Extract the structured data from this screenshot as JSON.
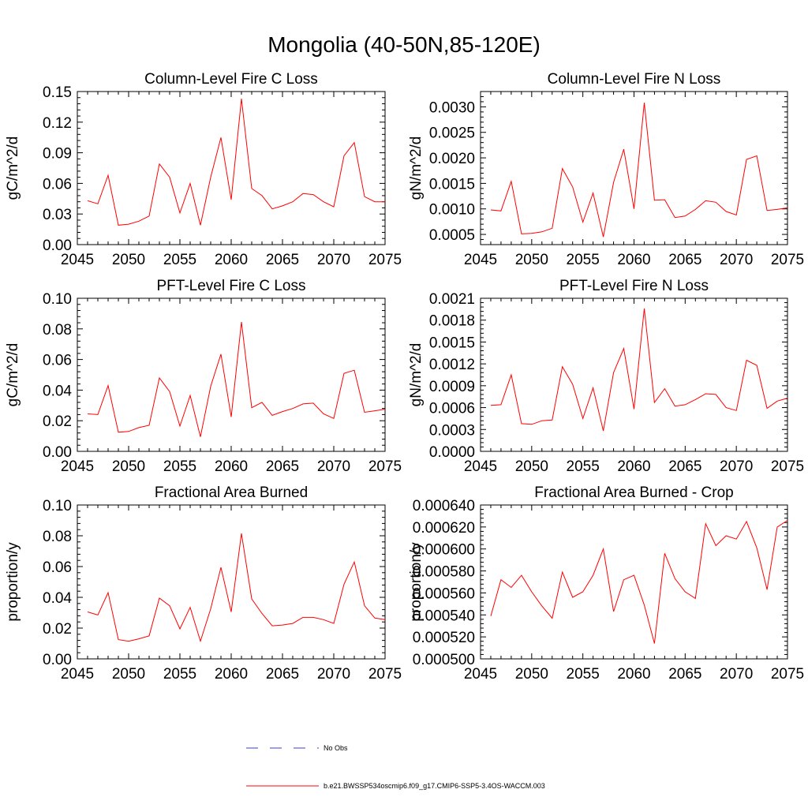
{
  "figure_title": "Mongolia (40-50N,85-120E)",
  "legend": {
    "obs_label": "No Obs",
    "model_label": "b.e21.BWSSP534oscmip6.f09_g17.CMIP6-SSP5-3.4OS-WACCM.003",
    "obs_color": "#3b3bd6",
    "model_color": "#ff0000"
  },
  "chart_data": [
    {
      "type": "line",
      "title": "Column-Level Fire C Loss",
      "ylabel": "gC/m^2/d",
      "xlim": [
        2045,
        2075
      ],
      "ylim": [
        0,
        0.15
      ],
      "xticks": [
        "2045",
        "2050",
        "2055",
        "2060",
        "2065",
        "2070",
        "2075"
      ],
      "yticks": [
        "0.00",
        "0.03",
        "0.06",
        "0.09",
        "0.12",
        "0.15"
      ],
      "x": [
        2046,
        2047,
        2048,
        2049,
        2050,
        2051,
        2052,
        2053,
        2054,
        2055,
        2056,
        2057,
        2058,
        2059,
        2060,
        2061,
        2062,
        2063,
        2064,
        2065,
        2066,
        2067,
        2068,
        2069,
        2070,
        2071,
        2072,
        2073,
        2074,
        2075
      ],
      "series": [
        {
          "values": [
            0.043,
            0.04,
            0.068,
            0.019,
            0.02,
            0.023,
            0.028,
            0.079,
            0.066,
            0.031,
            0.06,
            0.019,
            0.066,
            0.105,
            0.044,
            0.143,
            0.055,
            0.048,
            0.035,
            0.038,
            0.042,
            0.05,
            0.049,
            0.042,
            0.037,
            0.087,
            0.1,
            0.047,
            0.042,
            0.042
          ]
        }
      ]
    },
    {
      "type": "line",
      "title": "Column-Level Fire N Loss",
      "ylabel": "gN/m^2/d",
      "xlim": [
        2045,
        2075
      ],
      "ylim": [
        0.0003,
        0.0033
      ],
      "xticks": [
        "2045",
        "2050",
        "2055",
        "2060",
        "2065",
        "2070",
        "2075"
      ],
      "yticks": [
        "0.0005",
        "0.0010",
        "0.0015",
        "0.0020",
        "0.0025",
        "0.0030"
      ],
      "x": [
        2046,
        2047,
        2048,
        2049,
        2050,
        2051,
        2052,
        2053,
        2054,
        2055,
        2056,
        2057,
        2058,
        2059,
        2060,
        2061,
        2062,
        2063,
        2064,
        2065,
        2066,
        2067,
        2068,
        2069,
        2070,
        2071,
        2072,
        2073,
        2074,
        2075
      ],
      "series": [
        {
          "values": [
            0.00098,
            0.00096,
            0.00154,
            0.00051,
            0.00052,
            0.00055,
            0.00062,
            0.00179,
            0.00143,
            0.00074,
            0.00131,
            0.00045,
            0.00152,
            0.00217,
            0.001,
            0.00308,
            0.00117,
            0.00118,
            0.00083,
            0.00086,
            0.00099,
            0.00116,
            0.00113,
            0.00095,
            0.00088,
            0.00197,
            0.00204,
            0.00097,
            0.00099,
            0.00102
          ]
        }
      ]
    },
    {
      "type": "line",
      "title": "PFT-Level Fire C Loss",
      "ylabel": "gC/m^2/d",
      "xlim": [
        2045,
        2075
      ],
      "ylim": [
        0,
        0.1
      ],
      "xticks": [
        "2045",
        "2050",
        "2055",
        "2060",
        "2065",
        "2070",
        "2075"
      ],
      "yticks": [
        "0.00",
        "0.02",
        "0.04",
        "0.06",
        "0.08",
        "0.10"
      ],
      "x": [
        2046,
        2047,
        2048,
        2049,
        2050,
        2051,
        2052,
        2053,
        2054,
        2055,
        2056,
        2057,
        2058,
        2059,
        2060,
        2061,
        2062,
        2063,
        2064,
        2065,
        2066,
        2067,
        2068,
        2069,
        2070,
        2071,
        2072,
        2073,
        2074,
        2075
      ],
      "series": [
        {
          "values": [
            0.0245,
            0.024,
            0.043,
            0.0125,
            0.013,
            0.0155,
            0.017,
            0.048,
            0.039,
            0.0165,
            0.0365,
            0.0095,
            0.0425,
            0.0635,
            0.0225,
            0.0845,
            0.0285,
            0.032,
            0.0235,
            0.026,
            0.028,
            0.031,
            0.0315,
            0.0245,
            0.0215,
            0.051,
            0.053,
            0.0255,
            0.0265,
            0.0275
          ]
        }
      ]
    },
    {
      "type": "line",
      "title": "PFT-Level Fire N Loss",
      "ylabel": "gN/m^2/d",
      "xlim": [
        2045,
        2075
      ],
      "ylim": [
        0,
        0.0021
      ],
      "xticks": [
        "2045",
        "2050",
        "2055",
        "2060",
        "2065",
        "2070",
        "2075"
      ],
      "yticks": [
        "0.0000",
        "0.0003",
        "0.0006",
        "0.0009",
        "0.0012",
        "0.0015",
        "0.0018",
        "0.0021"
      ],
      "x": [
        2046,
        2047,
        2048,
        2049,
        2050,
        2051,
        2052,
        2053,
        2054,
        2055,
        2056,
        2057,
        2058,
        2059,
        2060,
        2061,
        2062,
        2063,
        2064,
        2065,
        2066,
        2067,
        2068,
        2069,
        2070,
        2071,
        2072,
        2073,
        2074,
        2075
      ],
      "series": [
        {
          "values": [
            0.00063,
            0.00064,
            0.00105,
            0.00038,
            0.00037,
            0.00042,
            0.00043,
            0.00116,
            0.00092,
            0.00045,
            0.00087,
            0.00028,
            0.00108,
            0.00141,
            0.00058,
            0.00196,
            0.00067,
            0.00086,
            0.00062,
            0.00064,
            0.00071,
            0.00079,
            0.00078,
            0.0006,
            0.00056,
            0.00125,
            0.00118,
            0.00059,
            0.00069,
            0.00073
          ]
        }
      ]
    },
    {
      "type": "line",
      "title": "Fractional Area Burned",
      "ylabel": "proportion/y",
      "xlim": [
        2045,
        2075
      ],
      "ylim": [
        0,
        0.1
      ],
      "xticks": [
        "2045",
        "2050",
        "2055",
        "2060",
        "2065",
        "2070",
        "2075"
      ],
      "yticks": [
        "0.00",
        "0.02",
        "0.04",
        "0.06",
        "0.08",
        "0.10"
      ],
      "x": [
        2046,
        2047,
        2048,
        2049,
        2050,
        2051,
        2052,
        2053,
        2054,
        2055,
        2056,
        2057,
        2058,
        2059,
        2060,
        2061,
        2062,
        2063,
        2064,
        2065,
        2066,
        2067,
        2068,
        2069,
        2070,
        2071,
        2072,
        2073,
        2074,
        2075
      ],
      "series": [
        {
          "values": [
            0.0305,
            0.0285,
            0.043,
            0.0125,
            0.0115,
            0.013,
            0.015,
            0.0395,
            0.0345,
            0.0195,
            0.0335,
            0.0115,
            0.0325,
            0.0595,
            0.0305,
            0.0815,
            0.039,
            0.0295,
            0.0215,
            0.022,
            0.023,
            0.027,
            0.027,
            0.0255,
            0.023,
            0.0485,
            0.063,
            0.0345,
            0.0265,
            0.0255
          ]
        }
      ]
    },
    {
      "type": "line",
      "title": "Fractional Area Burned - Crop",
      "ylabel": "proportion/y",
      "xlim": [
        2045,
        2075
      ],
      "ylim": [
        0.0005,
        0.00064
      ],
      "xticks": [
        "2045",
        "2050",
        "2055",
        "2060",
        "2065",
        "2070",
        "2075"
      ],
      "yticks": [
        "0.000500",
        "0.000520",
        "0.000540",
        "0.000560",
        "0.000580",
        "0.000600",
        "0.000620",
        "0.000640"
      ],
      "x": [
        2046,
        2047,
        2048,
        2049,
        2050,
        2051,
        2052,
        2053,
        2054,
        2055,
        2056,
        2057,
        2058,
        2059,
        2060,
        2061,
        2062,
        2063,
        2064,
        2065,
        2066,
        2067,
        2068,
        2069,
        2070,
        2071,
        2072,
        2073,
        2074,
        2075
      ],
      "series": [
        {
          "values": [
            0.000539,
            0.000572,
            0.000565,
            0.000576,
            0.000561,
            0.000548,
            0.000537,
            0.000579,
            0.000556,
            0.000561,
            0.000576,
            0.0006,
            0.000543,
            0.000572,
            0.000576,
            0.000549,
            0.000514,
            0.000596,
            0.000573,
            0.000561,
            0.000555,
            0.000623,
            0.000603,
            0.000612,
            0.000609,
            0.000625,
            0.000601,
            0.000563,
            0.00062,
            0.000626
          ]
        }
      ]
    }
  ]
}
